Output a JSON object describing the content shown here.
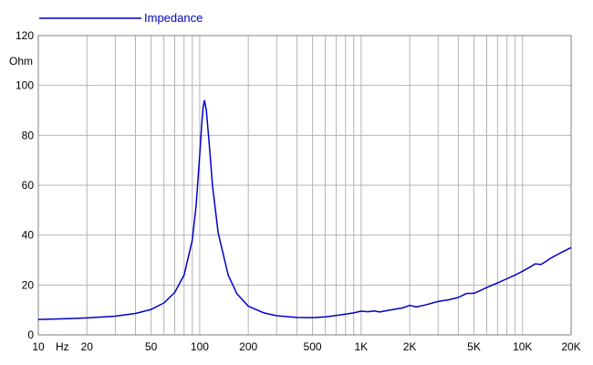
{
  "chart_data": {
    "type": "line",
    "title": "",
    "xlabel": "Hz",
    "ylabel": "Ohm",
    "x_scale": "log",
    "xlim": [
      10,
      20000
    ],
    "ylim": [
      0,
      120
    ],
    "grid": true,
    "legend": {
      "placement": "top-left",
      "label": "Impedance"
    },
    "x_tick_labels": [
      {
        "value": 10,
        "label": "10"
      },
      {
        "value": 20,
        "label": "20"
      },
      {
        "value": 50,
        "label": "50"
      },
      {
        "value": 100,
        "label": "100"
      },
      {
        "value": 200,
        "label": "200"
      },
      {
        "value": 500,
        "label": "500"
      },
      {
        "value": 1000,
        "label": "1K"
      },
      {
        "value": 2000,
        "label": "2K"
      },
      {
        "value": 5000,
        "label": "5K"
      },
      {
        "value": 10000,
        "label": "10K"
      },
      {
        "value": 20000,
        "label": "20K"
      }
    ],
    "y_ticks": [
      0,
      20,
      40,
      60,
      80,
      100,
      120
    ],
    "series": [
      {
        "name": "Impedance",
        "color": "#0000cc",
        "x": [
          10,
          15,
          20,
          30,
          40,
          50,
          60,
          70,
          80,
          90,
          95,
          100,
          103,
          105,
          107,
          110,
          115,
          120,
          130,
          150,
          170,
          200,
          250,
          300,
          400,
          500,
          600,
          700,
          800,
          900,
          1000,
          1100,
          1200,
          1300,
          1500,
          1800,
          2000,
          2200,
          2500,
          3000,
          3500,
          4000,
          4500,
          5000,
          5500,
          6000,
          7000,
          8000,
          9000,
          10000,
          11000,
          12000,
          13000,
          14000,
          15000,
          17000,
          20000
        ],
        "y": [
          6.2,
          6.5,
          6.8,
          7.5,
          8.6,
          10.2,
          12.8,
          17,
          24,
          38,
          52,
          72,
          85,
          91.5,
          94,
          90,
          75,
          60,
          41,
          24,
          16.5,
          11.5,
          8.8,
          7.7,
          7.0,
          6.9,
          7.2,
          7.8,
          8.3,
          8.8,
          9.5,
          9.3,
          9.6,
          9.2,
          9.9,
          10.8,
          11.8,
          11.2,
          12.0,
          13.4,
          14.1,
          15.0,
          16.6,
          16.7,
          17.8,
          19.0,
          20.8,
          22.5,
          24.0,
          25.5,
          27.0,
          28.5,
          28.2,
          29.5,
          30.8,
          32.7,
          35.0
        ]
      }
    ]
  }
}
